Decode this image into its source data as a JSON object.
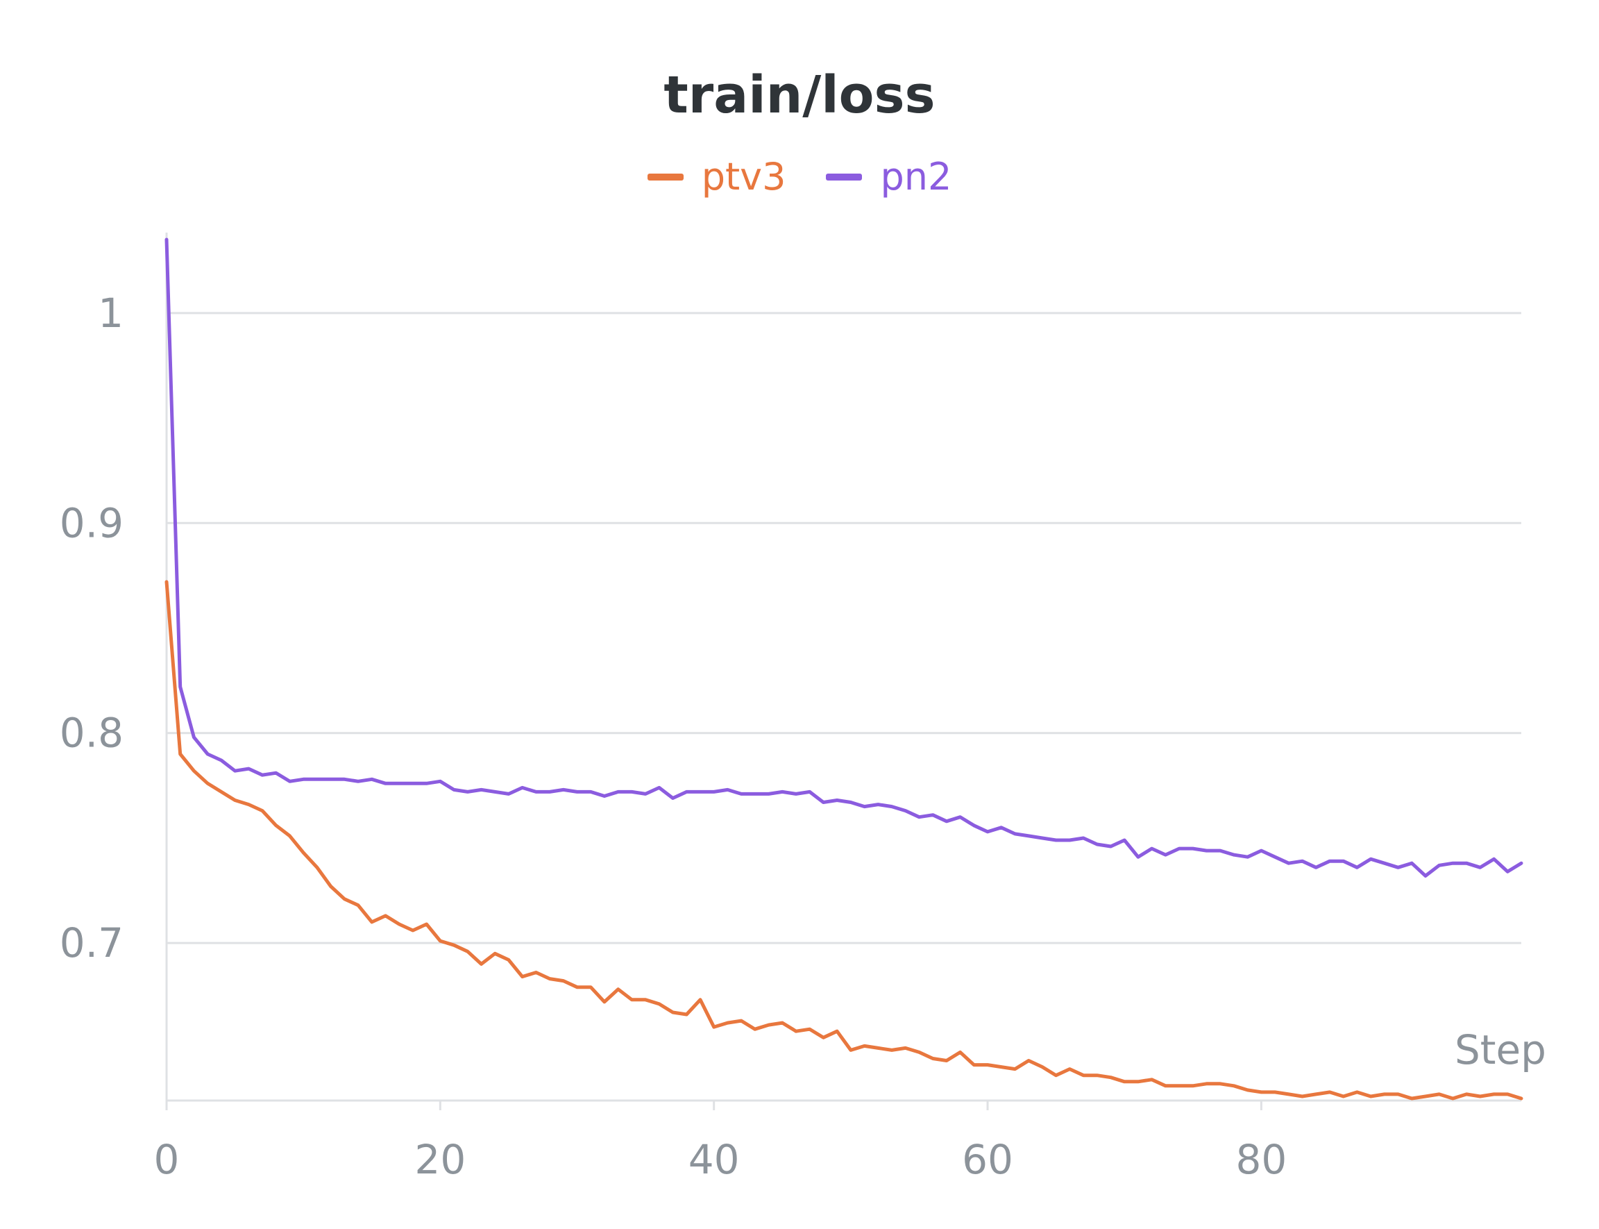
{
  "chart_data": {
    "type": "line",
    "title": "train/loss",
    "xlabel": "Step",
    "ylabel": "",
    "xlim": [
      0,
      99
    ],
    "ylim": [
      0.625,
      1.035
    ],
    "xticks": [
      0,
      20,
      40,
      60,
      80
    ],
    "yticks": [
      0.7,
      0.8,
      0.9,
      1
    ],
    "ytick_labels": [
      "0.7",
      "0.8",
      "0.9",
      "1"
    ],
    "grid": true,
    "legend_position": "top-center",
    "series": [
      {
        "name": "ptv3",
        "color": "#e8773e",
        "values": [
          0.872,
          0.79,
          0.782,
          0.776,
          0.772,
          0.768,
          0.766,
          0.763,
          0.756,
          0.751,
          0.743,
          0.736,
          0.727,
          0.721,
          0.718,
          0.71,
          0.713,
          0.709,
          0.706,
          0.709,
          0.701,
          0.699,
          0.696,
          0.69,
          0.695,
          0.692,
          0.684,
          0.686,
          0.683,
          0.682,
          0.679,
          0.679,
          0.672,
          0.678,
          0.673,
          0.673,
          0.671,
          0.667,
          0.666,
          0.673,
          0.66,
          0.662,
          0.663,
          0.659,
          0.661,
          0.662,
          0.658,
          0.659,
          0.655,
          0.658,
          0.649,
          0.651,
          0.65,
          0.649,
          0.65,
          0.648,
          0.645,
          0.644,
          0.648,
          0.642,
          0.642,
          0.641,
          0.64,
          0.644,
          0.641,
          0.637,
          0.64,
          0.637,
          0.637,
          0.636,
          0.634,
          0.634,
          0.635,
          0.632,
          0.632,
          0.632,
          0.633,
          0.633,
          0.632,
          0.63,
          0.629,
          0.629,
          0.628,
          0.627,
          0.628,
          0.629,
          0.627,
          0.629,
          0.627,
          0.628,
          0.628,
          0.626,
          0.627,
          0.628,
          0.626,
          0.628,
          0.627,
          0.628,
          0.628,
          0.626
        ]
      },
      {
        "name": "pn2",
        "color": "#8b5cdf",
        "values": [
          1.035,
          0.822,
          0.798,
          0.79,
          0.787,
          0.782,
          0.783,
          0.78,
          0.781,
          0.777,
          0.778,
          0.778,
          0.778,
          0.778,
          0.777,
          0.778,
          0.776,
          0.776,
          0.776,
          0.776,
          0.777,
          0.773,
          0.772,
          0.773,
          0.772,
          0.771,
          0.774,
          0.772,
          0.772,
          0.773,
          0.772,
          0.772,
          0.77,
          0.772,
          0.772,
          0.771,
          0.774,
          0.769,
          0.772,
          0.772,
          0.772,
          0.773,
          0.771,
          0.771,
          0.771,
          0.772,
          0.771,
          0.772,
          0.767,
          0.768,
          0.767,
          0.765,
          0.766,
          0.765,
          0.763,
          0.76,
          0.761,
          0.758,
          0.76,
          0.756,
          0.753,
          0.755,
          0.752,
          0.751,
          0.75,
          0.749,
          0.749,
          0.75,
          0.747,
          0.746,
          0.749,
          0.741,
          0.745,
          0.742,
          0.745,
          0.745,
          0.744,
          0.744,
          0.742,
          0.741,
          0.744,
          0.741,
          0.738,
          0.739,
          0.736,
          0.739,
          0.739,
          0.736,
          0.74,
          0.738,
          0.736,
          0.738,
          0.732,
          0.737,
          0.738,
          0.738,
          0.736,
          0.74,
          0.734,
          0.738
        ]
      }
    ]
  }
}
